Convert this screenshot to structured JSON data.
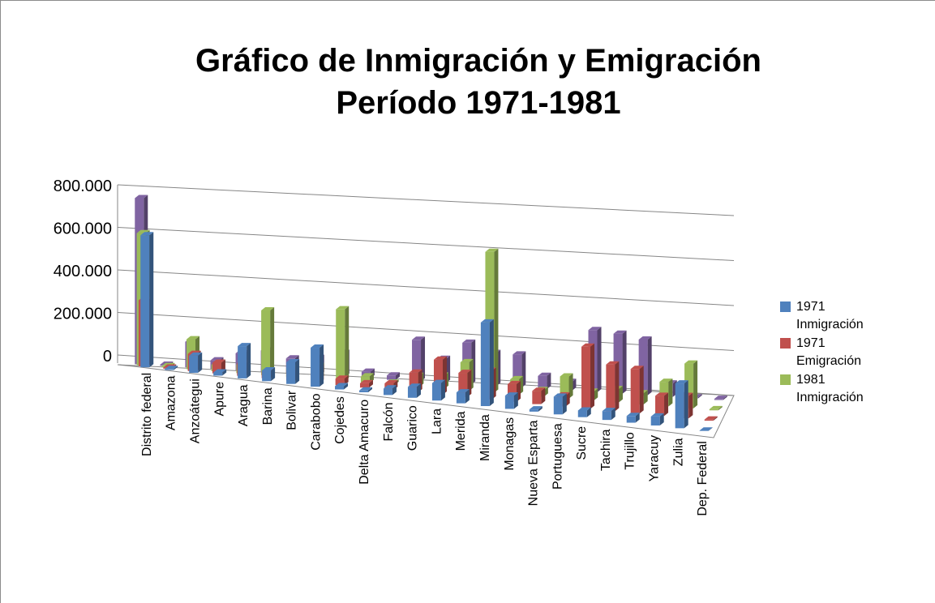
{
  "chart_data": {
    "type": "bar3d",
    "title": "Gráfico de Inmigración  y Emigración",
    "subtitle": "Período 1971-1981",
    "categories": [
      "Distrito federal",
      "Amazona",
      "Anzoátegui",
      "Apure",
      "Aragua",
      "Barina",
      "Bolivar",
      "Carabobo",
      "Cojedes",
      "Delta Amacuro",
      "Falcón",
      "Guarico",
      "Lara",
      "Merida",
      "Miranda",
      "Monagas",
      "Nueva Esparta",
      "Portuguesa",
      "Sucre",
      "Tachira",
      "Trujillo",
      "Yaracuy",
      "Zulia",
      "Dep. Federal"
    ],
    "series": [
      {
        "name": "1971 Inmigración",
        "color": "#4f81bd",
        "values": [
          620000,
          5000,
          80000,
          15000,
          150000,
          50000,
          100000,
          180000,
          15000,
          8000,
          30000,
          50000,
          80000,
          50000,
          380000,
          60000,
          10000,
          80000,
          30000,
          40000,
          30000,
          40000,
          200000,
          2000
        ]
      },
      {
        "name": "1971 Emigración",
        "color": "#c0504d",
        "values": [
          310000,
          5000,
          80000,
          50000,
          60000,
          30000,
          50000,
          70000,
          30000,
          20000,
          30000,
          90000,
          160000,
          110000,
          130000,
          80000,
          60000,
          50000,
          280000,
          210000,
          200000,
          90000,
          100000,
          5000
        ]
      },
      {
        "name": "1981 Inmigración",
        "color": "#9bbb59",
        "values": [
          620000,
          5000,
          140000,
          30000,
          40000,
          300000,
          40000,
          60000,
          330000,
          30000,
          10000,
          50000,
          60000,
          130000,
          640000,
          70000,
          30000,
          100000,
          40000,
          60000,
          50000,
          110000,
          200000,
          5000
        ]
      },
      {
        "color": "#8064a2",
        "values": [
          780000,
          5000,
          120000,
          40000,
          80000,
          100000,
          70000,
          80000,
          110000,
          30000,
          20000,
          190000,
          110000,
          190000,
          150000,
          150000,
          60000,
          40000,
          280000,
          270000,
          250000,
          60000,
          5000,
          5000
        ]
      }
    ],
    "ylim": [
      0,
      800000
    ],
    "yticks": [
      0,
      {
        "value": 200000,
        "label": "200.000"
      },
      {
        "value": 400000,
        "label": "400.000"
      },
      {
        "value": 600000,
        "label": "600.000"
      },
      {
        "value": 800000,
        "label": "800.000"
      }
    ],
    "grid": true,
    "legend": "right"
  }
}
